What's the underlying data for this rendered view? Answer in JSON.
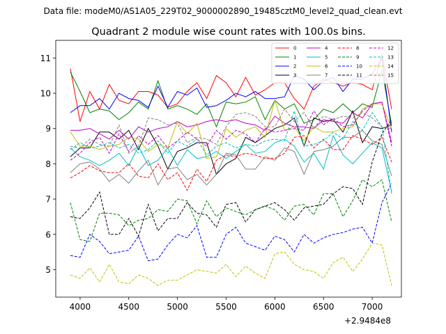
{
  "chart_data": {
    "type": "line",
    "suptitle": "Data file: modeM0/AS1A05_229T02_9000002890_19485cztM0_level2_quad_clean.evt",
    "title": "Quadrant 2 module wise count rates with 100.0s bins.",
    "xlabel": "",
    "ylabel": "",
    "x_offset_label": "+2.9484e8",
    "xlim": [
      3750,
      7300
    ],
    "ylim": [
      4.22,
      11.5
    ],
    "xticks": [
      4000,
      4500,
      5000,
      5500,
      6000,
      6500,
      7000
    ],
    "xtick_labels": [
      "4000",
      "4500",
      "5000",
      "5500",
      "6000",
      "6500",
      "7000"
    ],
    "yticks": [
      5,
      6,
      7,
      8,
      9,
      10,
      11
    ],
    "ytick_labels": [
      "5",
      "6",
      "7",
      "8",
      "9",
      "10",
      "11"
    ],
    "legend_position": "top-right",
    "x": [
      3900,
      4000,
      4100,
      4200,
      4300,
      4400,
      4500,
      4600,
      4700,
      4800,
      4900,
      5000,
      5100,
      5200,
      5300,
      5400,
      5500,
      5600,
      5700,
      5800,
      5900,
      6000,
      6100,
      6200,
      6300,
      6400,
      6500,
      6600,
      6700,
      6800,
      6900,
      7000,
      7100,
      7200
    ],
    "series": [
      {
        "name": "0",
        "color": "#ff0000",
        "dash": "solid",
        "values": [
          10.7,
          9.2,
          10.05,
          9.55,
          10.25,
          9.8,
          9.7,
          10.05,
          10.05,
          9.95,
          9.6,
          9.7,
          10.05,
          10.3,
          9.85,
          10.5,
          10.3,
          9.9,
          10.45,
          9.95,
          10.1,
          10.3,
          10.3,
          9.85,
          9.55,
          10.2,
          10.4,
          10.3,
          10.2,
          10.3,
          10.25,
          10.1,
          11.1,
          9.55
        ]
      },
      {
        "name": "1",
        "color": "#008000",
        "dash": "solid",
        "values": [
          10.6,
          10.05,
          9.45,
          9.55,
          9.5,
          9.25,
          9.45,
          9.75,
          9.55,
          10.35,
          9.55,
          9.65,
          9.55,
          9.4,
          9.7,
          9.05,
          9.75,
          9.7,
          9.75,
          9.9,
          9.25,
          9.8,
          9.55,
          9.7,
          9.15,
          9.25,
          9.55,
          9.45,
          9.7,
          9.45,
          9.7,
          9.6,
          10.65,
          9.1
        ]
      },
      {
        "name": "2",
        "color": "#0000ff",
        "dash": "solid",
        "values": [
          9.45,
          9.65,
          9.65,
          9.85,
          9.55,
          10.0,
          9.85,
          9.8,
          9.6,
          10.2,
          9.6,
          10.05,
          9.95,
          10.15,
          9.6,
          9.65,
          9.8,
          10.0,
          9.9,
          10.05,
          9.85,
          9.85,
          9.9,
          10.5,
          10.4,
          10.1,
          10.35,
          10.45,
          10.05,
          10.4,
          10.4,
          10.55,
          11.0,
          8.9
        ]
      },
      {
        "name": "3",
        "color": "#000000",
        "dash": "solid",
        "values": [
          8.2,
          8.45,
          8.45,
          8.9,
          8.9,
          8.7,
          8.95,
          8.4,
          9.0,
          8.5,
          7.85,
          8.35,
          8.45,
          8.6,
          8.6,
          7.7,
          8.0,
          8.15,
          8.75,
          8.6,
          8.8,
          9.0,
          9.1,
          9.3,
          8.5,
          9.3,
          9.2,
          9.25,
          8.9,
          9.5,
          8.6,
          9.05,
          9.0,
          9.1
        ]
      },
      {
        "name": "4",
        "color": "#bf00bf",
        "dash": "solid",
        "values": [
          8.95,
          8.95,
          9.0,
          8.85,
          8.7,
          8.95,
          8.7,
          9.05,
          8.9,
          9.0,
          9.05,
          9.2,
          9.05,
          9.1,
          9.2,
          9.25,
          9.2,
          9.25,
          9.15,
          9.1,
          8.95,
          9.35,
          9.15,
          9.05,
          9.05,
          9.0,
          9.25,
          9.2,
          9.15,
          9.45,
          9.3,
          9.7,
          9.75,
          8.6
        ]
      },
      {
        "name": "5",
        "color": "#00bfbf",
        "dash": "solid",
        "values": [
          8.45,
          8.2,
          8.1,
          7.95,
          8.1,
          8.3,
          7.95,
          8.5,
          7.95,
          8.1,
          8.45,
          7.95,
          8.4,
          8.15,
          8.2,
          8.35,
          8.15,
          8.35,
          8.55,
          8.3,
          8.35,
          8.6,
          8.7,
          8.5,
          8.05,
          8.3,
          7.85,
          8.8,
          8.25,
          8.0,
          8.3,
          8.6,
          8.45,
          7.2
        ]
      },
      {
        "name": "6",
        "color": "#bfbf00",
        "dash": "solid",
        "values": [
          8.9,
          8.5,
          8.5,
          8.4,
          8.5,
          8.55,
          8.75,
          8.7,
          8.35,
          8.55,
          8.45,
          9.2,
          8.85,
          9.15,
          8.15,
          8.2,
          9.0,
          8.75,
          8.95,
          9.05,
          8.75,
          9.8,
          8.95,
          9.05,
          8.65,
          9.05,
          8.9,
          8.9,
          9.0,
          9.05,
          9.55,
          9.7,
          9.7,
          9.0
        ]
      },
      {
        "name": "7",
        "color": "#808080",
        "dash": "solid",
        "values": [
          7.75,
          8.0,
          8.05,
          7.85,
          7.5,
          7.7,
          7.45,
          7.8,
          8.1,
          7.4,
          7.85,
          7.9,
          7.55,
          7.7,
          7.4,
          7.7,
          8.3,
          8.25,
          7.85,
          7.85,
          8.2,
          8.1,
          8.45,
          8.35,
          7.7,
          8.35,
          8.4,
          8.5,
          8.75,
          8.75,
          8.95,
          8.65,
          8.55,
          7.65
        ]
      },
      {
        "name": "8",
        "color": "#ff0000",
        "dash": "dashed",
        "values": [
          7.6,
          7.75,
          7.95,
          7.8,
          7.75,
          7.75,
          8.0,
          7.65,
          7.6,
          8.0,
          7.55,
          7.75,
          7.25,
          7.85,
          7.5,
          8.1,
          8.25,
          8.2,
          8.3,
          8.25,
          8.15,
          8.15,
          8.3,
          8.75,
          8.8,
          8.45,
          8.7,
          8.4,
          8.4,
          8.8,
          8.7,
          8.55,
          8.75,
          8.05
        ]
      },
      {
        "name": "9",
        "color": "#008000",
        "dash": "dashed",
        "values": [
          6.9,
          5.85,
          5.8,
          6.6,
          6.6,
          6.55,
          6.25,
          6.4,
          6.45,
          6.7,
          6.65,
          7.0,
          6.95,
          6.3,
          6.95,
          6.5,
          6.75,
          6.65,
          6.55,
          6.7,
          6.8,
          6.7,
          6.4,
          6.8,
          6.85,
          6.55,
          7.15,
          7.15,
          6.5,
          6.95,
          7.55,
          7.35,
          7.55,
          6.35
        ]
      },
      {
        "name": "10",
        "color": "#0000ff",
        "dash": "dashed",
        "values": [
          5.4,
          5.35,
          6.0,
          5.8,
          5.45,
          5.5,
          5.55,
          5.95,
          5.25,
          5.3,
          5.7,
          6.0,
          5.9,
          6.25,
          5.35,
          5.35,
          6.0,
          6.2,
          5.75,
          5.65,
          5.55,
          5.95,
          5.85,
          5.5,
          6.0,
          5.75,
          5.9,
          6.0,
          6.05,
          6.15,
          6.2,
          5.75,
          6.9,
          7.45
        ]
      },
      {
        "name": "11",
        "color": "#000000",
        "dash": "dashed",
        "values": [
          6.5,
          6.45,
          6.75,
          7.2,
          6.0,
          6.0,
          6.45,
          5.95,
          6.85,
          6.1,
          6.45,
          6.45,
          6.9,
          6.6,
          6.55,
          6.2,
          6.85,
          6.9,
          6.35,
          6.7,
          6.8,
          6.9,
          6.7,
          6.4,
          6.75,
          6.8,
          6.85,
          7.15,
          7.35,
          7.3,
          6.85,
          8.05,
          8.85,
          9.25
        ]
      },
      {
        "name": "12",
        "color": "#bf00bf",
        "dash": "dashed",
        "values": [
          8.1,
          8.3,
          8.6,
          8.75,
          8.3,
          8.85,
          8.35,
          8.8,
          8.55,
          8.8,
          8.45,
          8.65,
          8.9,
          8.7,
          8.5,
          8.95,
          8.7,
          8.95,
          8.85,
          8.6,
          9.0,
          8.9,
          8.95,
          9.0,
          8.95,
          9.5,
          9.1,
          9.3,
          9.05,
          9.1,
          9.5,
          9.7,
          9.75,
          8.5
        ]
      },
      {
        "name": "13",
        "color": "#00bfbf",
        "dash": "dashed",
        "values": [
          8.4,
          8.6,
          8.45,
          8.5,
          8.6,
          8.45,
          8.55,
          8.3,
          8.4,
          8.65,
          8.3,
          8.65,
          8.5,
          8.7,
          8.25,
          8.5,
          8.6,
          8.45,
          8.55,
          8.5,
          8.65,
          8.7,
          8.65,
          9.5,
          8.5,
          8.55,
          8.65,
          8.9,
          8.7,
          9.2,
          8.95,
          9.45,
          9.05,
          7.15
        ]
      },
      {
        "name": "14",
        "color": "#bfbf00",
        "dash": "dashed",
        "values": [
          4.85,
          4.75,
          5.05,
          4.65,
          5.15,
          4.65,
          4.6,
          4.85,
          4.75,
          4.55,
          4.7,
          4.7,
          4.85,
          5.0,
          4.95,
          4.9,
          5.15,
          4.8,
          5.1,
          4.9,
          4.75,
          5.45,
          5.5,
          5.15,
          5.0,
          4.95,
          4.75,
          5.2,
          5.35,
          4.95,
          5.3,
          5.75,
          5.7,
          4.55
        ]
      },
      {
        "name": "15",
        "color": "#808080",
        "dash": "dashed",
        "values": [
          8.5,
          8.45,
          8.7,
          8.55,
          8.5,
          9.1,
          8.3,
          8.5,
          9.3,
          9.25,
          9.1,
          9.15,
          8.6,
          8.75,
          8.7,
          8.55,
          9.05,
          9.4,
          9.45,
          9.35,
          9.05,
          9.05,
          9.55,
          9.2,
          9.45,
          9.0,
          9.35,
          9.25,
          9.35,
          9.3,
          9.45,
          9.3,
          9.05,
          9.0
        ]
      }
    ]
  }
}
